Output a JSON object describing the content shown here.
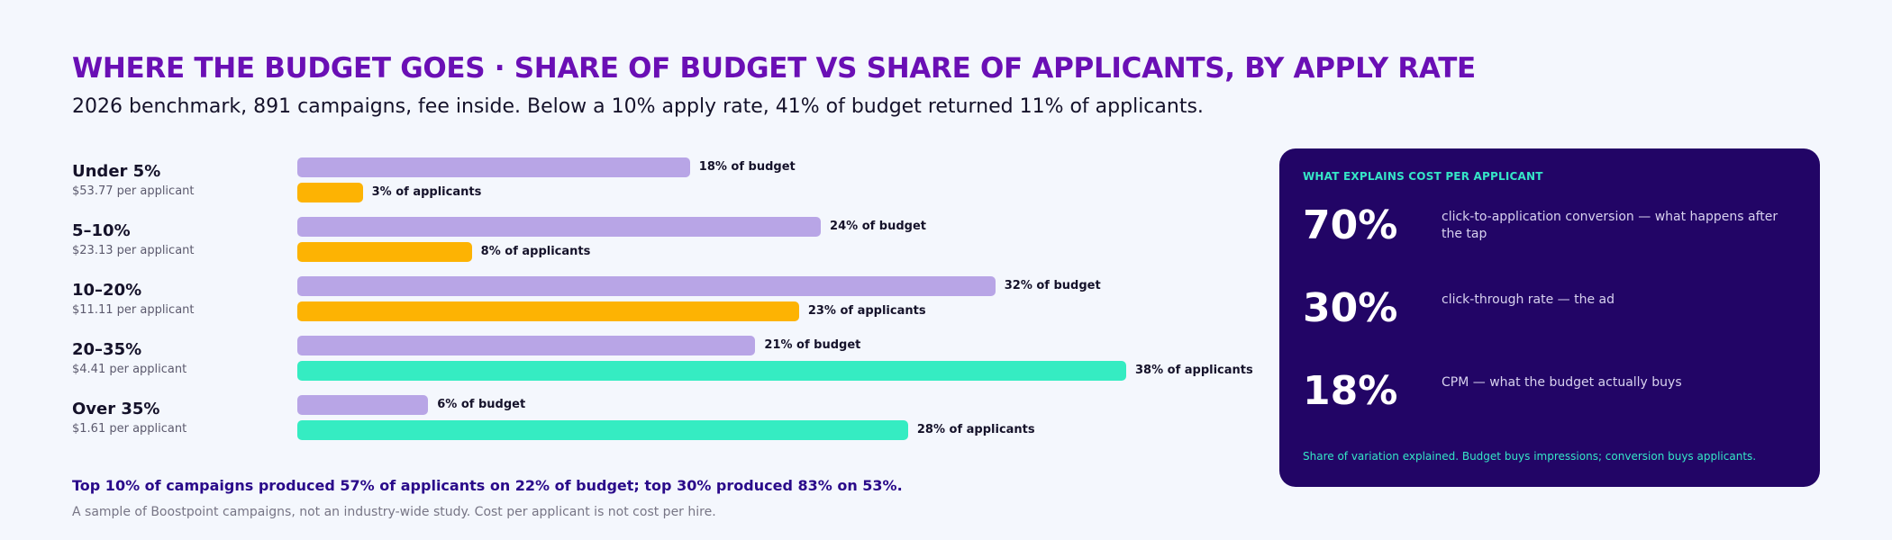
{
  "header": {
    "title": "WHERE THE BUDGET GOES · SHARE OF BUDGET VS SHARE OF APPLICANTS, BY APPLY RATE",
    "subtitle": "2026 benchmark, 891 campaigns, fee inside. Below a 10% apply rate, 41% of budget returned 11% of applicants."
  },
  "chart_data": {
    "type": "bar",
    "orientation": "horizontal",
    "categories": [
      "Under 5%",
      "5–10%",
      "10–20%",
      "20–35%",
      "Over 35%"
    ],
    "category_sublabels": [
      "$53.77 per applicant",
      "$23.13 per applicant",
      "$11.11 per applicant",
      "$4.41 per applicant",
      "$1.61 per applicant"
    ],
    "series": [
      {
        "values": [
          18,
          24,
          32,
          21,
          6
        ],
        "labels": [
          "18% of budget",
          "24% of budget",
          "32% of budget",
          "21% of budget",
          "6% of budget"
        ],
        "color": "#b8a5e6"
      },
      {
        "values": [
          3,
          8,
          23,
          38,
          28
        ],
        "labels": [
          "3% of applicants",
          "8% of applicants",
          "23% of applicants",
          "38% of applicants",
          "28% of applicants"
        ],
        "colors": [
          "#fdb303",
          "#fdb303",
          "#fdb303",
          "#35ecc2",
          "#35ecc2"
        ]
      }
    ],
    "xlim": [
      0,
      38
    ],
    "unit": "%",
    "grid": false,
    "legend": "none"
  },
  "notes": {
    "highlight": "Top 10% of campaigns produced 57% of applicants on 22% of budget; top 30% produced 83% on 53%.",
    "caption": "A sample of Boostpoint campaigns, not an industry-wide study. Cost per applicant is not cost per hire."
  },
  "panel": {
    "title": "WHAT EXPLAINS COST PER APPLICANT",
    "stats": [
      {
        "value": "70%",
        "desc": "click-to-application conversion — what happens after the tap"
      },
      {
        "value": "30%",
        "desc": "click-through rate — the ad"
      },
      {
        "value": "18%",
        "desc": "CPM — what the budget actually buys"
      }
    ],
    "footer": "Share of variation explained. Budget buys impressions; conversion buys applicants.",
    "colors": {
      "background": "#220566",
      "accent": "#35e6c7"
    }
  }
}
